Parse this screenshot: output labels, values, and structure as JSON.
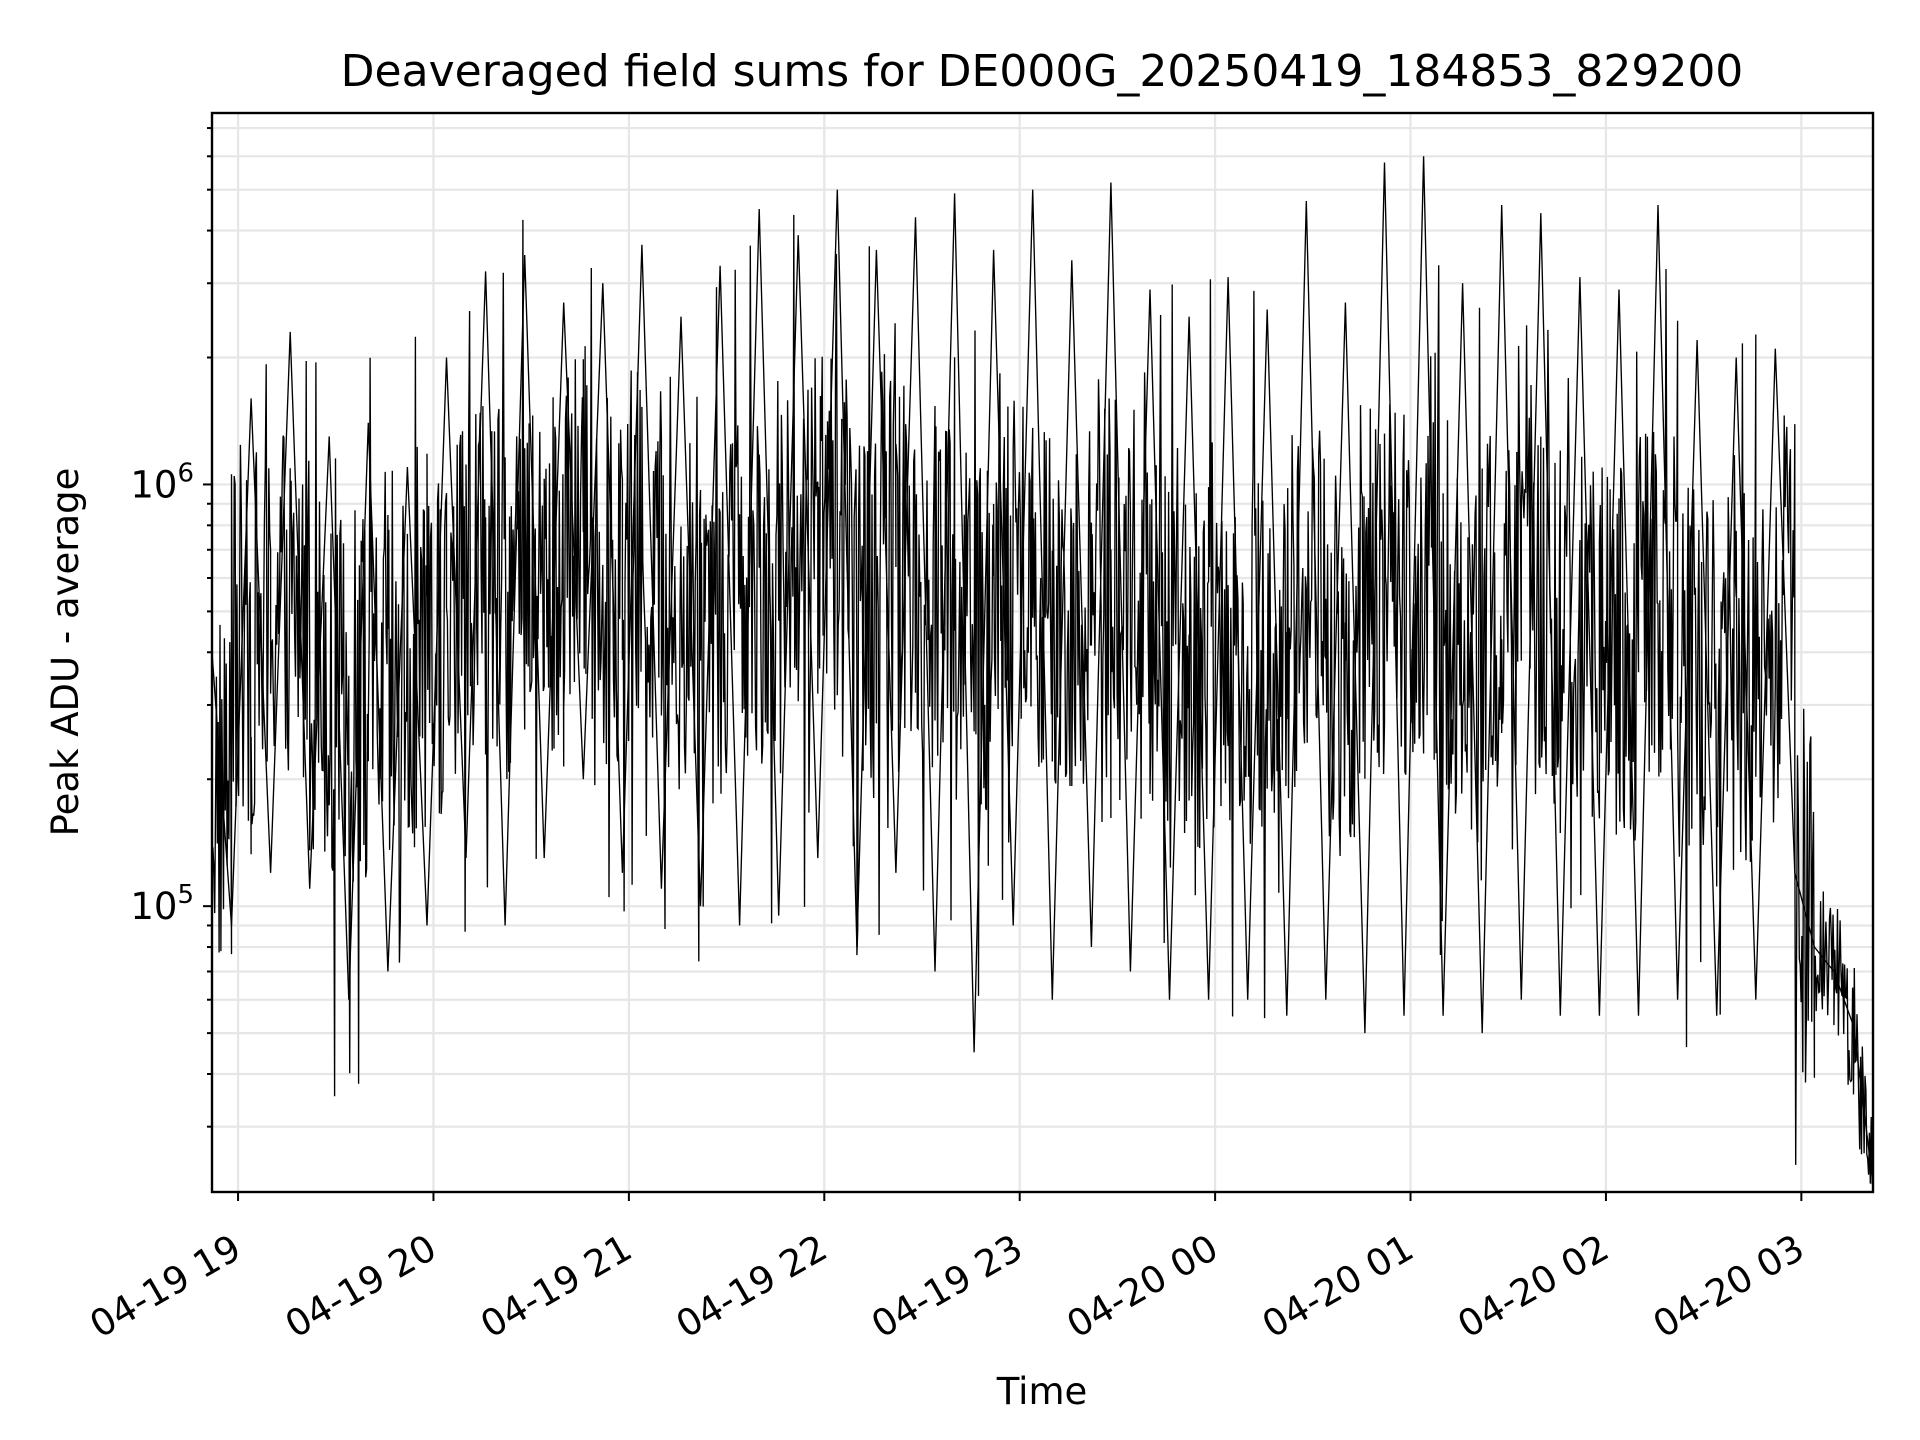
{
  "chart_data": {
    "type": "line",
    "title": "Deaveraged field sums for DE000G_20250419_184853_829200",
    "xlabel": "Time",
    "ylabel": "Peak ADU - average",
    "y_scale": "log",
    "ylim": [
      21000,
      7600000
    ],
    "xlim": [
      "2025-04-19 18:52",
      "2025-04-20 03:22"
    ],
    "grid": true,
    "grid_minor": true,
    "legend": "none",
    "colors": {
      "line": "#000000",
      "grid": "#e6e6e6",
      "background": "#ffffff"
    },
    "x_ticks": [
      {
        "value": "2025-04-19 19:00",
        "label": "04-19 19"
      },
      {
        "value": "2025-04-19 20:00",
        "label": "04-19 20"
      },
      {
        "value": "2025-04-19 21:00",
        "label": "04-19 21"
      },
      {
        "value": "2025-04-19 22:00",
        "label": "04-19 22"
      },
      {
        "value": "2025-04-19 23:00",
        "label": "04-19 23"
      },
      {
        "value": "2025-04-20 00:00",
        "label": "04-20 00"
      },
      {
        "value": "2025-04-20 01:00",
        "label": "04-20 01"
      },
      {
        "value": "2025-04-20 02:00",
        "label": "04-20 02"
      },
      {
        "value": "2025-04-20 03:00",
        "label": "04-20 03"
      }
    ],
    "y_ticks": [
      {
        "value": 100000,
        "base": "10",
        "exp": "5"
      },
      {
        "value": 1000000,
        "base": "10",
        "exp": "6"
      }
    ],
    "series": [
      {
        "color": "#000000",
        "x": [
          "2025-04-19 18:52",
          "2025-04-19 18:58",
          "2025-04-19 19:04",
          "2025-04-19 19:10",
          "2025-04-19 19:16",
          "2025-04-19 19:22",
          "2025-04-19 19:28",
          "2025-04-19 19:34",
          "2025-04-19 19:40",
          "2025-04-19 19:46",
          "2025-04-19 19:52",
          "2025-04-19 19:58",
          "2025-04-19 20:04",
          "2025-04-19 20:10",
          "2025-04-19 20:16",
          "2025-04-19 20:22",
          "2025-04-19 20:28",
          "2025-04-19 20:34",
          "2025-04-19 20:40",
          "2025-04-19 20:46",
          "2025-04-19 20:52",
          "2025-04-19 20:58",
          "2025-04-19 21:04",
          "2025-04-19 21:10",
          "2025-04-19 21:16",
          "2025-04-19 21:22",
          "2025-04-19 21:28",
          "2025-04-19 21:34",
          "2025-04-19 21:40",
          "2025-04-19 21:46",
          "2025-04-19 21:52",
          "2025-04-19 21:58",
          "2025-04-19 22:04",
          "2025-04-19 22:10",
          "2025-04-19 22:16",
          "2025-04-19 22:22",
          "2025-04-19 22:28",
          "2025-04-19 22:34",
          "2025-04-19 22:40",
          "2025-04-19 22:46",
          "2025-04-19 22:52",
          "2025-04-19 22:58",
          "2025-04-19 23:04",
          "2025-04-19 23:10",
          "2025-04-19 23:16",
          "2025-04-19 23:22",
          "2025-04-19 23:28",
          "2025-04-19 23:34",
          "2025-04-19 23:40",
          "2025-04-19 23:46",
          "2025-04-19 23:52",
          "2025-04-19 23:58",
          "2025-04-20 00:04",
          "2025-04-20 00:10",
          "2025-04-20 00:16",
          "2025-04-20 00:22",
          "2025-04-20 00:28",
          "2025-04-20 00:34",
          "2025-04-20 00:40",
          "2025-04-20 00:46",
          "2025-04-20 00:52",
          "2025-04-20 00:58",
          "2025-04-20 01:04",
          "2025-04-20 01:10",
          "2025-04-20 01:16",
          "2025-04-20 01:22",
          "2025-04-20 01:28",
          "2025-04-20 01:34",
          "2025-04-20 01:40",
          "2025-04-20 01:46",
          "2025-04-20 01:52",
          "2025-04-20 01:58",
          "2025-04-20 02:04",
          "2025-04-20 02:10",
          "2025-04-20 02:16",
          "2025-04-20 02:22",
          "2025-04-20 02:28",
          "2025-04-20 02:34",
          "2025-04-20 02:40",
          "2025-04-20 02:46",
          "2025-04-20 02:52",
          "2025-04-20 02:58",
          "2025-04-20 03:04",
          "2025-04-20 03:10",
          "2025-04-20 03:16",
          "2025-04-20 03:22"
        ],
        "values": [
          400000,
          90000,
          1600000,
          120000,
          2300000,
          110000,
          1300000,
          60000,
          1400000,
          70000,
          1100000,
          90000,
          2000000,
          130000,
          3200000,
          90000,
          3500000,
          130000,
          2700000,
          200000,
          3000000,
          120000,
          3700000,
          110000,
          2500000,
          100000,
          3300000,
          90000,
          4500000,
          95000,
          3900000,
          130000,
          5000000,
          80000,
          3600000,
          120000,
          4300000,
          70000,
          4900000,
          45000,
          3600000,
          90000,
          5000000,
          60000,
          3400000,
          80000,
          5200000,
          70000,
          2900000,
          60000,
          2500000,
          60000,
          3100000,
          60000,
          2600000,
          55000,
          4700000,
          60000,
          2700000,
          50000,
          5800000,
          55000,
          6000000,
          55000,
          3000000,
          50000,
          4600000,
          60000,
          4400000,
          55000,
          3100000,
          55000,
          2900000,
          55000,
          4600000,
          60000,
          2200000,
          55000,
          2000000,
          60000,
          2100000,
          120000,
          80000,
          70000,
          52000,
          22000
        ]
      }
    ]
  }
}
